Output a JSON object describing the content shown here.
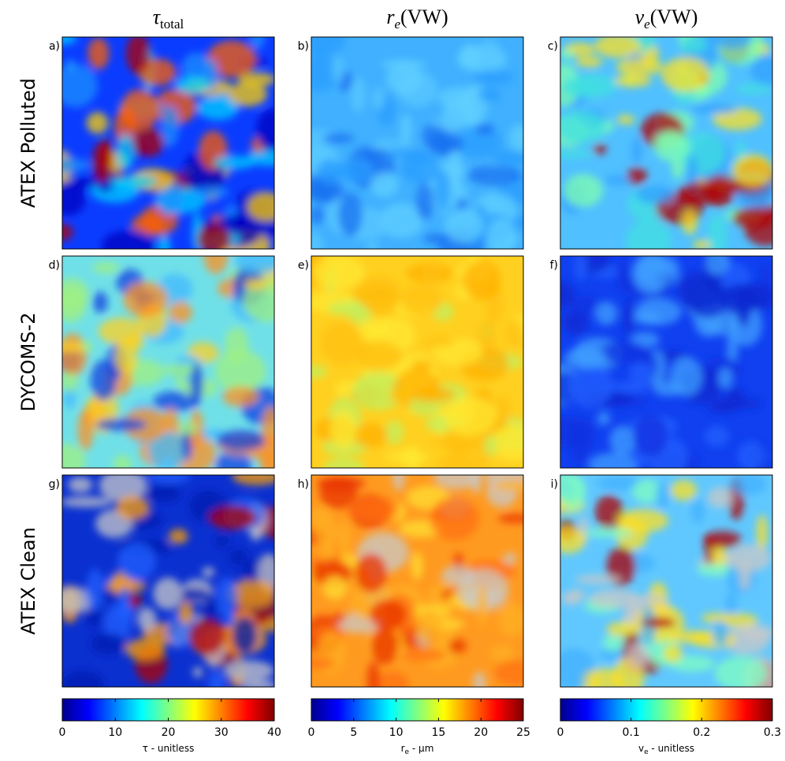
{
  "column_titles": [
    {
      "symbol": "τ",
      "subscript": "total"
    },
    {
      "symbol": "r",
      "subscript": "e",
      "suffix": "(VW)"
    },
    {
      "symbol": "v",
      "subscript": "e",
      "suffix": "(VW)"
    }
  ],
  "row_labels": [
    "ATEX Polluted",
    "DYCOMS-2",
    "ATEX Clean"
  ],
  "panel_labels": [
    "a)",
    "b)",
    "c)",
    "d)",
    "e)",
    "f)",
    "g)",
    "h)",
    "i)"
  ],
  "chart_data": [
    {
      "type": "colorbar",
      "colormap": "jet",
      "xlim": [
        0,
        40
      ],
      "xticks": [
        0,
        10,
        20,
        30,
        40
      ],
      "xlabel": {
        "symbol": "τ",
        "suffix": " - unitless"
      }
    },
    {
      "type": "colorbar",
      "colormap": "jet",
      "xlim": [
        0,
        25
      ],
      "xticks": [
        0,
        5,
        10,
        15,
        20,
        25
      ],
      "xlabel": {
        "symbol": "r",
        "subscript": "e",
        "suffix": " - μm"
      }
    },
    {
      "type": "colorbar",
      "colormap": "jet",
      "xlim": [
        0,
        0.3
      ],
      "xticks": [
        0,
        0.1,
        0.2,
        0.3
      ],
      "xlabel": {
        "symbol": "v",
        "subscript": "e",
        "suffix": " - unitless"
      }
    }
  ]
}
